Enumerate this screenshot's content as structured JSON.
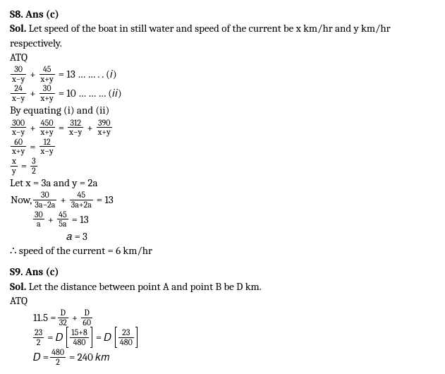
{
  "s8": {
    "header": "S8. Ans (c)",
    "sol_label": "Sol.",
    "sol_text": " Let speed of the boat in still water and speed of the current be x km/hr and y km/hr respectively.",
    "atq": "ATQ",
    "eq1": {
      "n1": "30",
      "d1": "x−y",
      "n2": "45",
      "d2": "x+y",
      "rhs": "= 13 … … . . (𝑖)"
    },
    "eq2": {
      "n1": "24",
      "d1": "x−y",
      "n2": "30",
      "d2": "x+y",
      "rhs": "= 10   … … … (𝑖𝑖)"
    },
    "byeq": "By equating (i) and (ii)",
    "eq3": {
      "n1": "300",
      "d1": "x−y",
      "n2": "450",
      "d2": "x+y",
      "n3": "312",
      "d3": "x−y",
      "n4": "390",
      "d4": "x+y"
    },
    "eq4": {
      "n1": "60",
      "d1": "x+y",
      "n2": "12",
      "d2": "x−y"
    },
    "eq5": {
      "n1": "x",
      "d1": "y",
      "n2": "3",
      "d2": "2"
    },
    "let": "Let x = 3a and y = 2a",
    "now_label": "Now, ",
    "eq6": {
      "n1": "30",
      "d1": "3a−2a",
      "n2": "45",
      "d2": "3a+2a",
      "rhs": "= 13"
    },
    "eq7": {
      "n1": "30",
      "d1": "a",
      "n2": "45",
      "d2": "5a",
      "rhs": "= 13"
    },
    "eq8": "𝑎 = 3",
    "final": "∴ speed of the current = 6 km/hr"
  },
  "s9": {
    "header": "S9. Ans (c)",
    "sol_label": "Sol.",
    "sol_text": " Let the distance between point A and point B be D km.",
    "atq": "ATQ",
    "eq1": {
      "lhs": "11.5 =",
      "n1": "D",
      "d1": "32",
      "n2": "D",
      "d2": "60"
    },
    "eq2": {
      "ln": "23",
      "ld": "2",
      "mid": "= 𝐷",
      "b1n": "15+8",
      "b1d": "480",
      "mid2": "= 𝐷",
      "b2n": "23",
      "b2d": "480"
    },
    "eq3": {
      "lhs": "𝐷 =",
      "n": "480",
      "d": "2",
      "rhs": "= 240 𝑘𝑚"
    }
  }
}
